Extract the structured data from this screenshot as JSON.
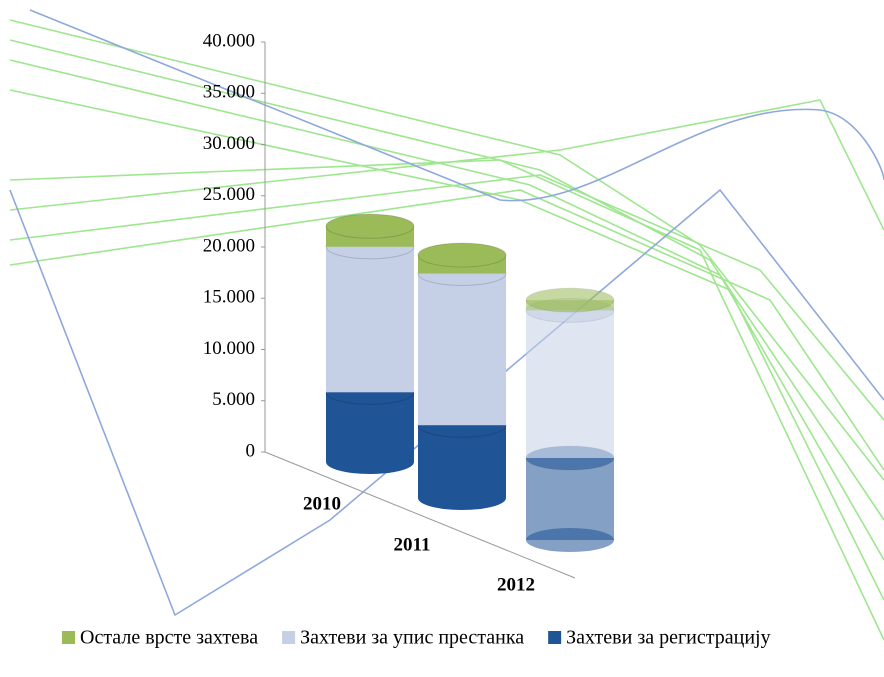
{
  "chart_data": {
    "type": "bar",
    "categories": [
      "2010",
      "2011",
      "2012"
    ],
    "series": [
      {
        "name": "Остале врсте захтева",
        "color": "#9bbb59",
        "values": [
          2000,
          1800,
          1000
        ]
      },
      {
        "name": "Захтеви за упис престанка",
        "color": "#c5d0e6",
        "values": [
          14200,
          14800,
          14400
        ]
      },
      {
        "name": "Захтеви за регистрацију",
        "color": "#1f5496",
        "values": [
          6800,
          7100,
          8000
        ]
      }
    ],
    "stacked": true,
    "ylim": [
      0,
      40000
    ],
    "yticks": [
      0,
      {
        "value": 5000,
        "label": "5.000"
      },
      {
        "value": 10000,
        "label": "10.000"
      },
      {
        "value": 15000,
        "label": "15.000"
      },
      {
        "value": 20000,
        "label": "20.000"
      },
      {
        "value": 25000,
        "label": "25.000"
      },
      {
        "value": 30000,
        "label": "30.000"
      },
      {
        "value": 35000,
        "label": "35.000"
      },
      {
        "value": 40000,
        "label": "40.000"
      }
    ],
    "legend_position": "bottom"
  }
}
